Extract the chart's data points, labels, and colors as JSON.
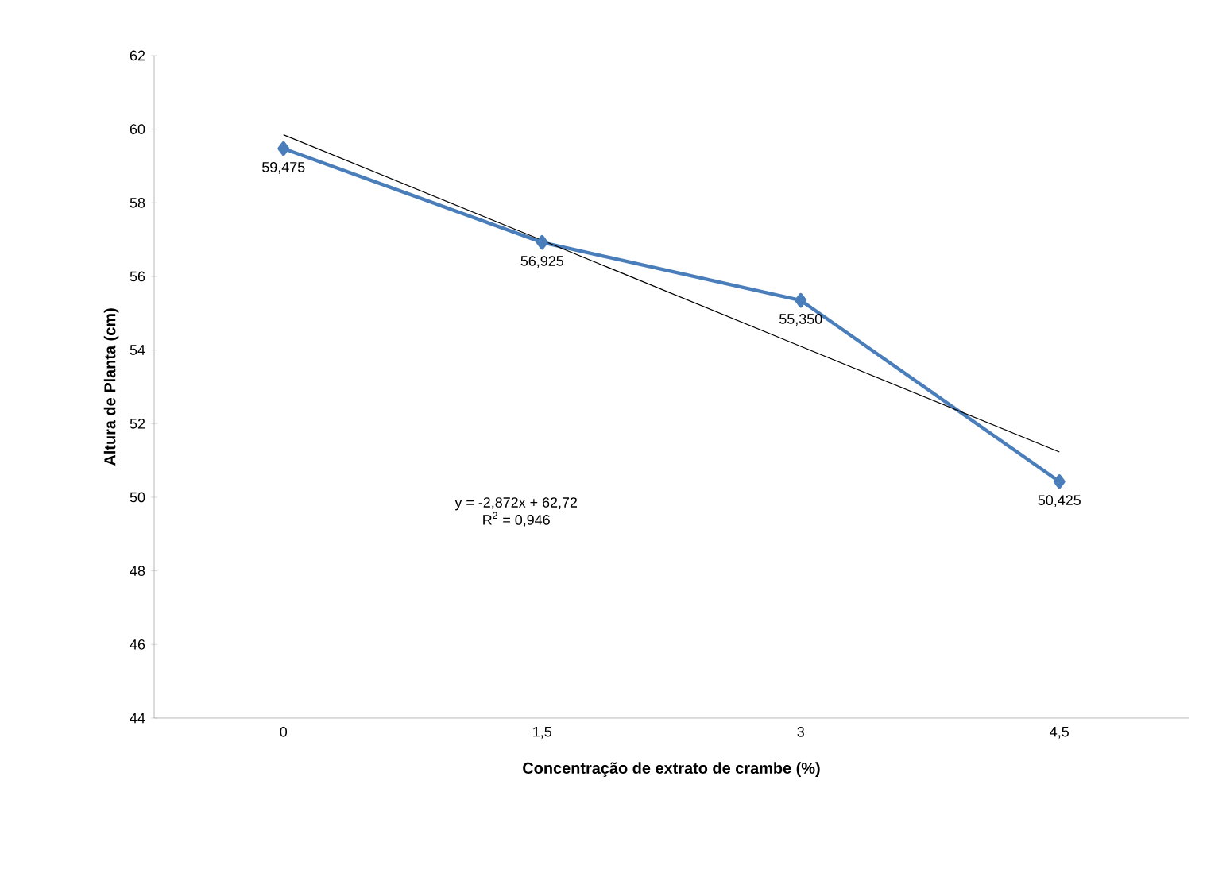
{
  "chart_data": {
    "type": "line",
    "xlabel": "Concentração de extrato de crambe (%)",
    "ylabel": "Altura de Planta (cm)",
    "categories": [
      "0",
      "1,5",
      "3",
      "4,5"
    ],
    "series": [
      {
        "color": "#4a7ebb",
        "values": [
          59.475,
          56.925,
          55.35,
          50.425
        ],
        "value_labels": [
          "59,475",
          "56,925",
          "55,350",
          "50,425"
        ],
        "marker": "diamond"
      },
      {
        "type": "line",
        "color": "#000000",
        "values": [
          59.85,
          56.98,
          54.1,
          51.23
        ],
        "marker": "none"
      }
    ],
    "ylim": [
      44,
      62
    ],
    "yticks": [
      44,
      46,
      48,
      50,
      52,
      54,
      56,
      58,
      60,
      62
    ],
    "grid": false,
    "annotations": [
      "y = -2,872x + 62,72",
      "R$^{2}$ = 0,946"
    ]
  }
}
